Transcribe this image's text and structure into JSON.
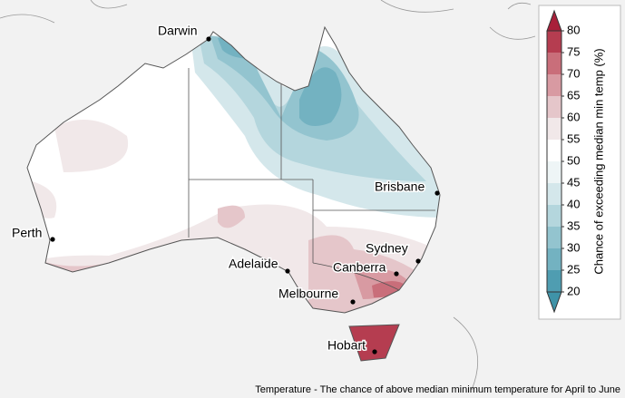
{
  "caption": "Temperature - The chance of above median minimum temperature for April to June",
  "legend": {
    "label": "Chance of exceeding median min temp (%)",
    "ticks": [
      20,
      25,
      30,
      35,
      40,
      45,
      50,
      55,
      60,
      65,
      70,
      75,
      80
    ],
    "colors": [
      "#4f9db1",
      "#73b2c1",
      "#93c4cf",
      "#b4d6dd",
      "#d4e7eb",
      "#eef5f6",
      "#ffffff",
      "#f1e8e9",
      "#e5c6ca",
      "#d89aa2",
      "#c96e7a",
      "#b53d50"
    ],
    "under_color": "#3f93a8",
    "over_color": "#a8203a"
  },
  "cities": [
    "Darwin",
    "Perth",
    "Adelaide",
    "Melbourne",
    "Canberra",
    "Sydney",
    "Brisbane",
    "Hobart"
  ]
}
